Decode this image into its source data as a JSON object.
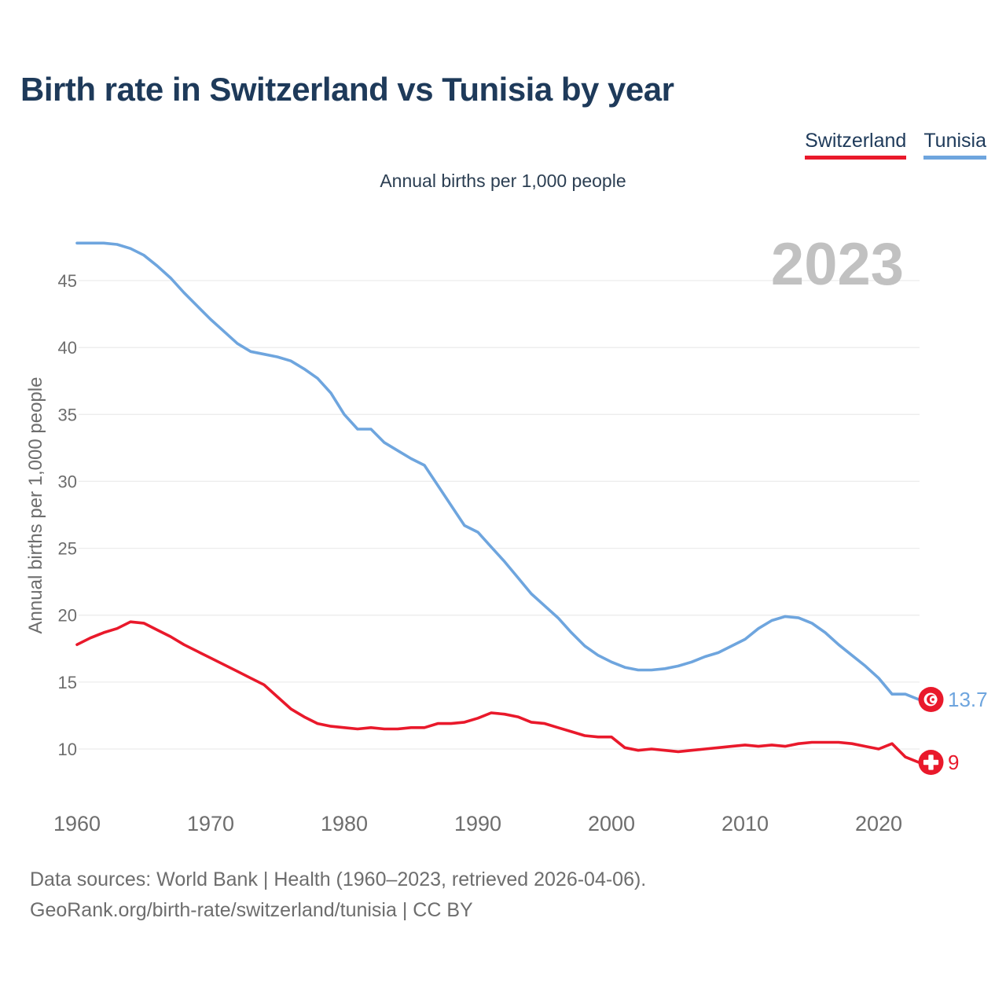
{
  "title": "Birth rate in Switzerland vs Tunisia by year",
  "subtitle": "Annual births per 1,000 people",
  "watermark": "2023",
  "legend": [
    {
      "label": "Switzerland",
      "color": "#e9192b"
    },
    {
      "label": "Tunisia",
      "color": "#6ea5de"
    }
  ],
  "footer": {
    "line1": "Data sources: World Bank | Health (1960–2023, retrieved 2026-04-06).",
    "line2": "GeoRank.org/birth-rate/switzerland/tunisia | CC BY"
  },
  "chart_data": {
    "type": "line",
    "title": "Birth rate in Switzerland vs Tunisia by year",
    "xlabel": "",
    "ylabel": "Annual births per 1,000 people",
    "grid": true,
    "legend_position": "top-right",
    "xlim": [
      1958.5,
      2029.5
    ],
    "ylim": [
      7.5,
      49.5
    ],
    "x_ticks": [
      1960,
      1970,
      1980,
      1990,
      2000,
      2010,
      2020
    ],
    "y_ticks": [
      10,
      15,
      20,
      25,
      30,
      35,
      40,
      45
    ],
    "years": [
      1960,
      1961,
      1962,
      1963,
      1964,
      1965,
      1966,
      1967,
      1968,
      1969,
      1970,
      1971,
      1972,
      1973,
      1974,
      1975,
      1976,
      1977,
      1978,
      1979,
      1980,
      1981,
      1982,
      1983,
      1984,
      1985,
      1986,
      1987,
      1988,
      1989,
      1990,
      1991,
      1992,
      1993,
      1994,
      1995,
      1996,
      1997,
      1998,
      1999,
      2000,
      2001,
      2002,
      2003,
      2004,
      2005,
      2006,
      2007,
      2008,
      2009,
      2010,
      2011,
      2012,
      2013,
      2014,
      2015,
      2016,
      2017,
      2018,
      2019,
      2020,
      2021,
      2022,
      2023
    ],
    "series": [
      {
        "name": "Switzerland",
        "color": "#e9192b",
        "end_label": "9",
        "end_value": 9,
        "end_icon": "switzerland-flag",
        "values": [
          17.8,
          18.3,
          18.7,
          19.0,
          19.5,
          19.4,
          18.9,
          18.4,
          17.8,
          17.3,
          16.8,
          16.3,
          15.8,
          15.3,
          14.8,
          13.9,
          13.0,
          12.4,
          11.9,
          11.7,
          11.6,
          11.5,
          11.6,
          11.5,
          11.5,
          11.6,
          11.6,
          11.9,
          11.9,
          12.0,
          12.3,
          12.7,
          12.6,
          12.4,
          12.0,
          11.9,
          11.6,
          11.3,
          11.0,
          10.9,
          10.9,
          10.1,
          9.9,
          10.0,
          9.9,
          9.8,
          9.9,
          10.0,
          10.1,
          10.2,
          10.3,
          10.2,
          10.3,
          10.2,
          10.4,
          10.5,
          10.5,
          10.5,
          10.4,
          10.2,
          10.0,
          10.4,
          9.4,
          9.0
        ]
      },
      {
        "name": "Tunisia",
        "color": "#6ea5de",
        "end_label": "13.7",
        "end_value": 13.7,
        "end_icon": "tunisia-flag",
        "values": [
          47.8,
          47.8,
          47.8,
          47.7,
          47.4,
          46.9,
          46.1,
          45.2,
          44.1,
          43.1,
          42.1,
          41.2,
          40.3,
          39.7,
          39.5,
          39.3,
          39.0,
          38.4,
          37.7,
          36.6,
          35.0,
          33.9,
          33.9,
          32.9,
          32.3,
          31.7,
          31.2,
          29.7,
          28.2,
          26.7,
          26.2,
          25.1,
          24.0,
          22.8,
          21.6,
          20.7,
          19.8,
          18.7,
          17.7,
          17.0,
          16.5,
          16.1,
          15.9,
          15.9,
          16.0,
          16.2,
          16.5,
          16.9,
          17.2,
          17.7,
          18.2,
          19.0,
          19.6,
          19.9,
          19.8,
          19.4,
          18.7,
          17.8,
          17.0,
          16.2,
          15.3,
          14.1,
          14.1,
          13.7
        ]
      }
    ]
  }
}
